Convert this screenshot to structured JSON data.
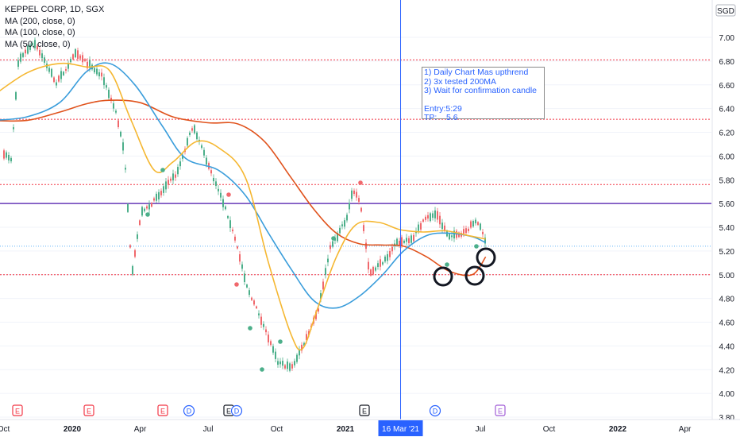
{
  "legend": {
    "title": "KEPPEL CORP, 1D, SGX",
    "ma200": "MA (200, close, 0)",
    "ma100": "MA (100, close, 0)",
    "ma50": "MA (50, close, 0)"
  },
  "note": {
    "line1": "1) Daily Chart Mas upthrend",
    "line2": "2) 3x tested 200MA",
    "line3": "3) Wait for confirmation candle",
    "line4": "Entry:5:29",
    "line5": "TP:    5.6"
  },
  "colors": {
    "ma200": "#e0521c",
    "ma100": "#3a9ddb",
    "ma50": "#f5b731",
    "up": "#4caf8a",
    "down": "#f0686c",
    "level_red": "#f23645",
    "level_purple": "#673ab7",
    "current_price": "#2196f3",
    "crosshair": "#2962ff"
  },
  "chart_data": {
    "type": "line",
    "title": "KEPPEL CORP, 1D, SGX",
    "currency": "SGD",
    "y_ticks": [
      "7.00",
      "6.80",
      "6.60",
      "6.40",
      "6.20",
      "6.00",
      "5.80",
      "5.60",
      "5.40",
      "5.20",
      "5.00",
      "4.80",
      "4.60",
      "4.40",
      "4.20",
      "4.00",
      "3.80"
    ],
    "ylim": [
      3.8,
      7.2
    ],
    "x_ticks": [
      "Oct",
      "2020",
      "Apr",
      "Jul",
      "Oct",
      "2021",
      "Apr",
      "Jul",
      "Oct",
      "2022",
      "Apr"
    ],
    "crosshair_label": "16 Mar '21",
    "horizontal_levels": [
      {
        "value": 6.81,
        "label": "6.81",
        "style": "dotted",
        "color": "#f23645"
      },
      {
        "value": 6.31,
        "label": "6.31",
        "style": "dotted",
        "color": "#f23645"
      },
      {
        "value": 5.76,
        "label": "5.76",
        "style": "dotted",
        "color": "#f23645"
      },
      {
        "value": 5.6,
        "label": "5.60",
        "style": "solid",
        "color": "#673ab7"
      },
      {
        "value": 5.0,
        "label": "5.00",
        "style": "dotted",
        "color": "#f23645"
      }
    ],
    "current_price": {
      "value": 5.24,
      "label": "5.24"
    },
    "events_row": [
      "E",
      "E",
      "E",
      "D",
      "E",
      "D",
      "E",
      "D",
      "E"
    ],
    "series": [
      {
        "name": "MA (200, close, 0)",
        "color": "#e0521c",
        "x": [
          "2019-09-15",
          "2019-11-01",
          "2019-12-15",
          "2020-01-20",
          "2020-02-20",
          "2020-04-01",
          "2020-05-15",
          "2020-07-01",
          "2020-08-10",
          "2020-09-15",
          "2020-10-20",
          "2020-11-20",
          "2020-12-20",
          "2021-01-20",
          "2021-02-20",
          "2021-03-20",
          "2021-04-20",
          "2021-05-20",
          "2021-06-20",
          "2021-07-08"
        ],
        "y": [
          6.3,
          6.3,
          6.37,
          6.44,
          6.47,
          6.45,
          6.33,
          6.28,
          6.27,
          6.12,
          5.82,
          5.55,
          5.35,
          5.26,
          5.25,
          5.24,
          5.15,
          5.03,
          5.0,
          5.15
        ]
      },
      {
        "name": "MA (100, close, 0)",
        "color": "#3a9ddb",
        "x": [
          "2019-09-15",
          "2019-11-01",
          "2019-12-15",
          "2020-01-20",
          "2020-02-20",
          "2020-03-25",
          "2020-05-01",
          "2020-06-01",
          "2020-07-15",
          "2020-08-20",
          "2020-09-20",
          "2020-10-20",
          "2020-11-20",
          "2020-12-20",
          "2021-01-20",
          "2021-02-20",
          "2021-03-20",
          "2021-04-20",
          "2021-05-20",
          "2021-06-20",
          "2021-07-08"
        ],
        "y": [
          6.3,
          6.33,
          6.45,
          6.71,
          6.78,
          6.6,
          6.25,
          5.98,
          5.88,
          5.67,
          5.35,
          5.05,
          4.78,
          4.72,
          4.82,
          5.0,
          5.2,
          5.33,
          5.35,
          5.32,
          5.27
        ]
      },
      {
        "name": "MA (50, close, 0)",
        "color": "#f5b731",
        "x": [
          "2019-09-15",
          "2019-11-01",
          "2019-12-15",
          "2020-01-20",
          "2020-02-20",
          "2020-03-20",
          "2020-04-20",
          "2020-05-15",
          "2020-06-15",
          "2020-07-15",
          "2020-08-20",
          "2020-09-20",
          "2020-10-20",
          "2020-11-05",
          "2020-11-25",
          "2020-12-20",
          "2021-01-15",
          "2021-02-15",
          "2021-03-15",
          "2021-04-15",
          "2021-05-15",
          "2021-06-15",
          "2021-07-08"
        ],
        "y": [
          6.5,
          6.7,
          6.78,
          6.75,
          6.72,
          6.3,
          5.88,
          5.95,
          6.12,
          6.07,
          5.82,
          5.1,
          4.5,
          4.38,
          4.72,
          5.15,
          5.42,
          5.44,
          5.38,
          5.36,
          5.37,
          5.33,
          5.3
        ]
      }
    ]
  }
}
